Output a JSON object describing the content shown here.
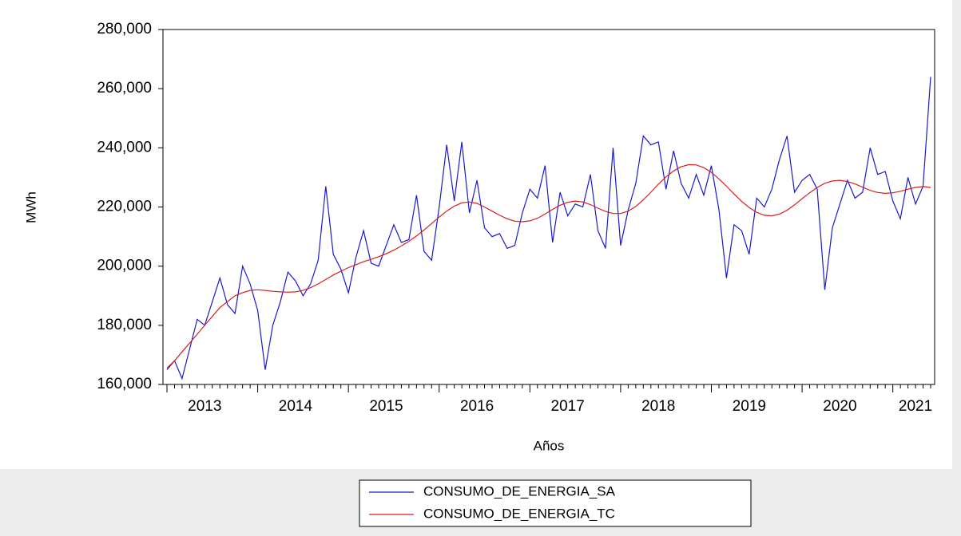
{
  "chart_data": {
    "type": "line",
    "y_label": "MWh",
    "x_label": "Años",
    "categories": [
      null,
      null,
      null,
      null,
      null,
      "2013",
      null,
      null,
      null,
      null,
      null,
      null,
      null,
      null,
      null,
      null,
      null,
      "2014",
      null,
      null,
      null,
      null,
      null,
      null,
      null,
      null,
      null,
      null,
      null,
      "2015",
      null,
      null,
      null,
      null,
      null,
      null,
      null,
      null,
      null,
      null,
      null,
      "2016",
      null,
      null,
      null,
      null,
      null,
      null,
      null,
      null,
      null,
      null,
      null,
      "2017",
      null,
      null,
      null,
      null,
      null,
      null,
      null,
      null,
      null,
      null,
      null,
      "2018",
      null,
      null,
      null,
      null,
      null,
      null,
      null,
      null,
      null,
      null,
      null,
      "2019",
      null,
      null,
      null,
      null,
      null,
      null,
      null,
      null,
      null,
      null,
      null,
      "2020",
      null,
      null,
      null,
      null,
      null,
      null,
      null,
      null,
      null,
      "2021",
      null,
      null
    ],
    "series": [
      {
        "name": "CONSUMO_DE_ENERGIA_SA",
        "color": "#1a1acc",
        "values": [
          165000,
          168000,
          162000,
          172000,
          182000,
          180000,
          188000,
          196000,
          187000,
          184000,
          200000,
          194000,
          185000,
          165000,
          180000,
          188000,
          198000,
          195000,
          190000,
          194000,
          202000,
          227000,
          204000,
          199000,
          191000,
          203000,
          212000,
          201000,
          200000,
          207000,
          214000,
          208000,
          209000,
          224000,
          205000,
          202000,
          220000,
          241000,
          222000,
          242000,
          218000,
          229000,
          213000,
          210000,
          211000,
          206000,
          207000,
          218000,
          226000,
          223000,
          234000,
          208000,
          225000,
          217000,
          221000,
          220000,
          231000,
          212000,
          206000,
          240000,
          207000,
          219000,
          228000,
          244000,
          241000,
          242000,
          226000,
          239000,
          228000,
          223000,
          231000,
          224000,
          234000,
          219000,
          196000,
          214000,
          212000,
          204000,
          223000,
          220000,
          226000,
          236000,
          244000,
          225000,
          229000,
          231000,
          226000,
          192000,
          213000,
          221000,
          229000,
          223000,
          225000,
          240000,
          231000,
          232000,
          222000,
          216000,
          230000,
          221000,
          227000,
          264000
        ]
      },
      {
        "name": "CONSUMO_DE_ENERGIA_TC",
        "color": "#d42020",
        "values": [
          165500,
          168000,
          171000,
          174000,
          177000,
          180000,
          183000,
          186000,
          188000,
          190000,
          191000,
          191800,
          192000,
          191800,
          191500,
          191300,
          191200,
          191300,
          191800,
          192700,
          194000,
          195500,
          197000,
          198300,
          199500,
          200500,
          201500,
          202300,
          203200,
          204200,
          205400,
          206800,
          208400,
          210200,
          212200,
          214400,
          216600,
          218600,
          220300,
          221400,
          221700,
          221200,
          220000,
          218600,
          217200,
          216000,
          215200,
          215000,
          215300,
          216200,
          217600,
          219200,
          220600,
          221600,
          222000,
          221700,
          220800,
          219600,
          218500,
          217800,
          217800,
          218600,
          220200,
          222400,
          225000,
          227700,
          230200,
          232200,
          233600,
          234300,
          234200,
          233300,
          231700,
          229500,
          227000,
          224400,
          221900,
          219800,
          218200,
          217200,
          217000,
          217600,
          218900,
          220700,
          222800,
          224800,
          226600,
          228000,
          228800,
          229000,
          228600,
          227800,
          226700,
          225600,
          224900,
          224600,
          224800,
          225300,
          226000,
          226600,
          226900,
          226600
        ]
      }
    ],
    "ylim": [
      160000,
      280000
    ],
    "yticks": [
      {
        "value": 160000,
        "label": "160,000"
      },
      {
        "value": 180000,
        "label": "180,000"
      },
      {
        "value": 200000,
        "label": "200,000"
      },
      {
        "value": 220000,
        "label": "220,000"
      },
      {
        "value": 240000,
        "label": "240,000"
      },
      {
        "value": 260000,
        "label": "260,000"
      },
      {
        "value": 280000,
        "label": "280,000"
      }
    ],
    "grid": false
  }
}
